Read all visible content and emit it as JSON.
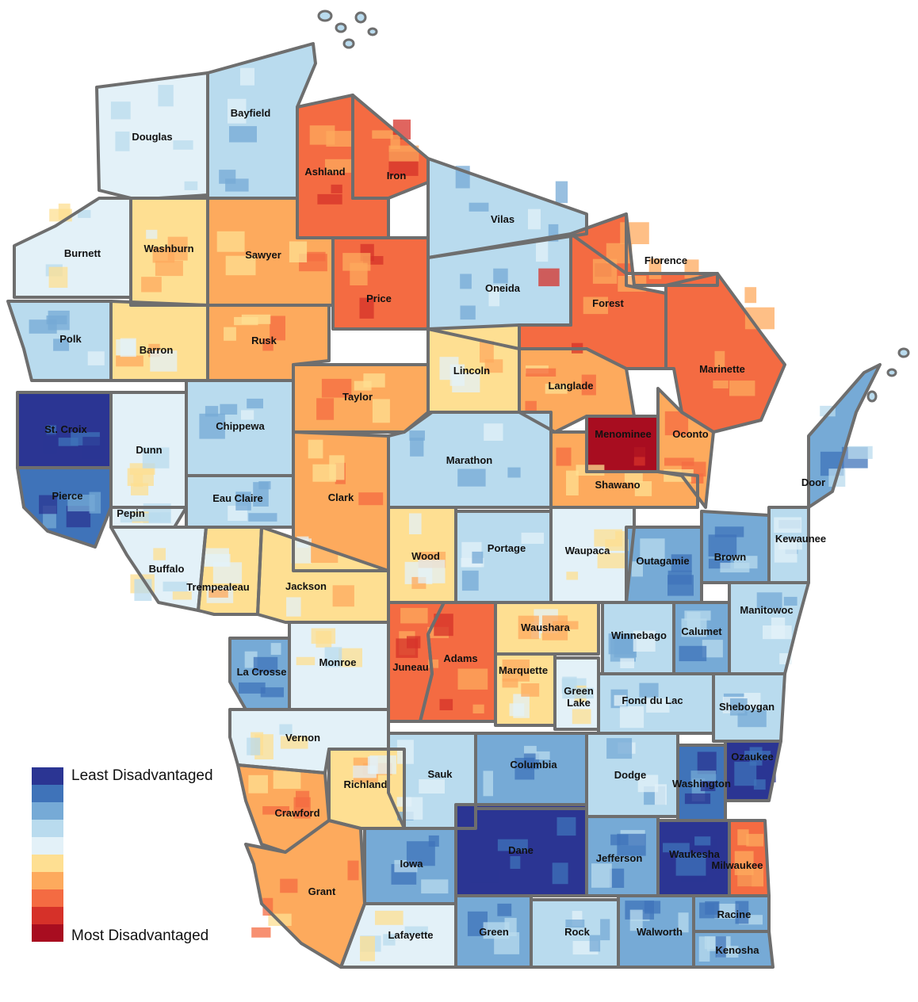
{
  "map": {
    "palette": {
      "c1": "#2b3593",
      "c2": "#3f73b9",
      "c3": "#76aad6",
      "c4": "#b9dbee",
      "c5": "#e3f1f8",
      "c6": "#fedf92",
      "c7": "#fdaa5d",
      "c8": "#f46b42",
      "c9": "#d63129",
      "c10": "#a80d20",
      "outline": "#6e6e6e",
      "nodata": "#d9d9d9"
    },
    "counties": [
      {
        "name": "Douglas",
        "cls": 5
      },
      {
        "name": "Bayfield",
        "cls": 4
      },
      {
        "name": "Ashland",
        "cls": 8
      },
      {
        "name": "Iron",
        "cls": 8
      },
      {
        "name": "Vilas",
        "cls": 4
      },
      {
        "name": "Burnett",
        "cls": 5
      },
      {
        "name": "Washburn",
        "cls": 6
      },
      {
        "name": "Sawyer",
        "cls": 7
      },
      {
        "name": "Price",
        "cls": 8
      },
      {
        "name": "Oneida",
        "cls": 4
      },
      {
        "name": "Florence",
        "cls": 8
      },
      {
        "name": "Forest",
        "cls": 8
      },
      {
        "name": "Polk",
        "cls": 4
      },
      {
        "name": "Barron",
        "cls": 6
      },
      {
        "name": "Rusk",
        "cls": 7
      },
      {
        "name": "Lincoln",
        "cls": 6
      },
      {
        "name": "Marinette",
        "cls": 8
      },
      {
        "name": "Taylor",
        "cls": 7
      },
      {
        "name": "Langlade",
        "cls": 7
      },
      {
        "name": "St. Croix",
        "cls": 1
      },
      {
        "name": "Dunn",
        "cls": 5
      },
      {
        "name": "Chippewa",
        "cls": 4
      },
      {
        "name": "Menominee",
        "cls": 10
      },
      {
        "name": "Oconto",
        "cls": 7
      },
      {
        "name": "Marathon",
        "cls": 4
      },
      {
        "name": "Shawano",
        "cls": 7
      },
      {
        "name": "Door",
        "cls": 3
      },
      {
        "name": "Pierce",
        "cls": 2
      },
      {
        "name": "Eau Claire",
        "cls": 4
      },
      {
        "name": "Clark",
        "cls": 7
      },
      {
        "name": "Pepin",
        "cls": 5
      },
      {
        "name": "Kewaunee",
        "cls": 4
      },
      {
        "name": "Wood",
        "cls": 6
      },
      {
        "name": "Portage",
        "cls": 4
      },
      {
        "name": "Waupaca",
        "cls": 5
      },
      {
        "name": "Outagamie",
        "cls": 3
      },
      {
        "name": "Brown",
        "cls": 3
      },
      {
        "name": "Buffalo",
        "cls": 5
      },
      {
        "name": "Trempealeau",
        "cls": 6
      },
      {
        "name": "Jackson",
        "cls": 6
      },
      {
        "name": "Manitowoc",
        "cls": 4
      },
      {
        "name": "Waushara",
        "cls": 6
      },
      {
        "name": "Winnebago",
        "cls": 4
      },
      {
        "name": "Calumet",
        "cls": 3
      },
      {
        "name": "Juneau",
        "cls": 8
      },
      {
        "name": "Adams",
        "cls": 8
      },
      {
        "name": "La Crosse",
        "cls": 3
      },
      {
        "name": "Monroe",
        "cls": 5
      },
      {
        "name": "Marquette",
        "cls": 6
      },
      {
        "name": "Green Lake",
        "cls": 5
      },
      {
        "name": "Fond du Lac",
        "cls": 4
      },
      {
        "name": "Sheboygan",
        "cls": 4
      },
      {
        "name": "Vernon",
        "cls": 5
      },
      {
        "name": "Ozaukee",
        "cls": 1
      },
      {
        "name": "Columbia",
        "cls": 3
      },
      {
        "name": "Sauk",
        "cls": 4
      },
      {
        "name": "Dodge",
        "cls": 4
      },
      {
        "name": "Washington",
        "cls": 2
      },
      {
        "name": "Richland",
        "cls": 6
      },
      {
        "name": "Crawford",
        "cls": 7
      },
      {
        "name": "Dane",
        "cls": 1
      },
      {
        "name": "Jefferson",
        "cls": 3
      },
      {
        "name": "Waukesha",
        "cls": 1
      },
      {
        "name": "Milwaukee",
        "cls": 8
      },
      {
        "name": "Iowa",
        "cls": 3
      },
      {
        "name": "Grant",
        "cls": 7
      },
      {
        "name": "Racine",
        "cls": 3
      },
      {
        "name": "Green",
        "cls": 3
      },
      {
        "name": "Rock",
        "cls": 4
      },
      {
        "name": "Walworth",
        "cls": 3
      },
      {
        "name": "Lafayette",
        "cls": 5
      },
      {
        "name": "Kenosha",
        "cls": 3
      }
    ]
  },
  "legend": {
    "label_top": "Least Disadvantaged",
    "label_bottom": "Most Disadvantaged",
    "classes": [
      "c1",
      "c2",
      "c3",
      "c4",
      "c5",
      "c6",
      "c7",
      "c8",
      "c9",
      "c10"
    ]
  }
}
